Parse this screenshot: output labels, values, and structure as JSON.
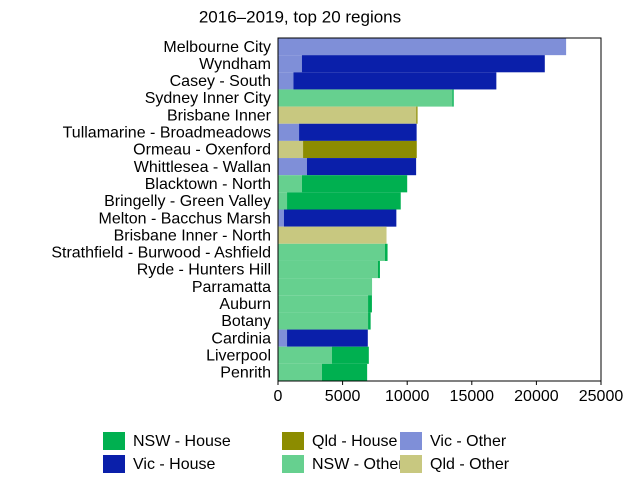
{
  "chart_data": {
    "type": "stacked-barh",
    "title": "2016–2019, top 20 regions",
    "categories": [
      "Melbourne City",
      "Wyndham",
      "Casey - South",
      "Sydney Inner City",
      "Brisbane Inner",
      "Tullamarine - Broadmeadows",
      "Ormeau - Oxenford",
      "Whittlesea - Wallan",
      "Blacktown - North",
      "Bringelly - Green Valley",
      "Melton - Bacchus Marsh",
      "Brisbane Inner - North",
      "Strathfield - Burwood - Ashfield",
      "Ryde - Hunters Hill",
      "Parramatta",
      "Auburn",
      "Botany",
      "Cardinia",
      "Liverpool",
      "Penrith"
    ],
    "series": [
      {
        "name": "NSW - House",
        "color": "#00b050",
        "values": [
          0,
          0,
          0,
          100,
          0,
          0,
          0,
          0,
          8150,
          8800,
          0,
          0,
          200,
          150,
          0,
          300,
          200,
          0,
          2850,
          3500
        ]
      },
      {
        "name": "Vic - House",
        "color": "#0a1faa",
        "values": [
          0,
          18800,
          15700,
          0,
          0,
          9100,
          0,
          8450,
          0,
          0,
          8700,
          0,
          0,
          0,
          0,
          0,
          0,
          6250,
          0,
          0
        ]
      },
      {
        "name": "Qld - House",
        "color": "#8c8c00",
        "values": [
          0,
          0,
          0,
          0,
          100,
          0,
          8800,
          0,
          0,
          0,
          0,
          0,
          0,
          0,
          0,
          0,
          0,
          0,
          0,
          0
        ]
      },
      {
        "name": "NSW - Other",
        "color": "#66d08f",
        "values": [
          0,
          0,
          0,
          13500,
          0,
          0,
          0,
          0,
          1850,
          700,
          0,
          0,
          8280,
          7740,
          7280,
          6970,
          6970,
          0,
          4180,
          3400
        ]
      },
      {
        "name": "Vic - Other",
        "color": "#7f8fd8",
        "values": [
          22300,
          1850,
          1200,
          0,
          0,
          1630,
          0,
          2240,
          0,
          0,
          460,
          0,
          0,
          0,
          0,
          0,
          0,
          700,
          0,
          0
        ]
      },
      {
        "name": "Qld - Other",
        "color": "#c8c880",
        "values": [
          0,
          0,
          0,
          0,
          10700,
          0,
          1940,
          0,
          0,
          0,
          0,
          8400,
          0,
          0,
          0,
          0,
          0,
          0,
          0,
          0
        ]
      }
    ],
    "xlim": [
      0,
      25000
    ],
    "xticks": [
      0,
      5000,
      10000,
      15000,
      20000,
      25000
    ]
  }
}
